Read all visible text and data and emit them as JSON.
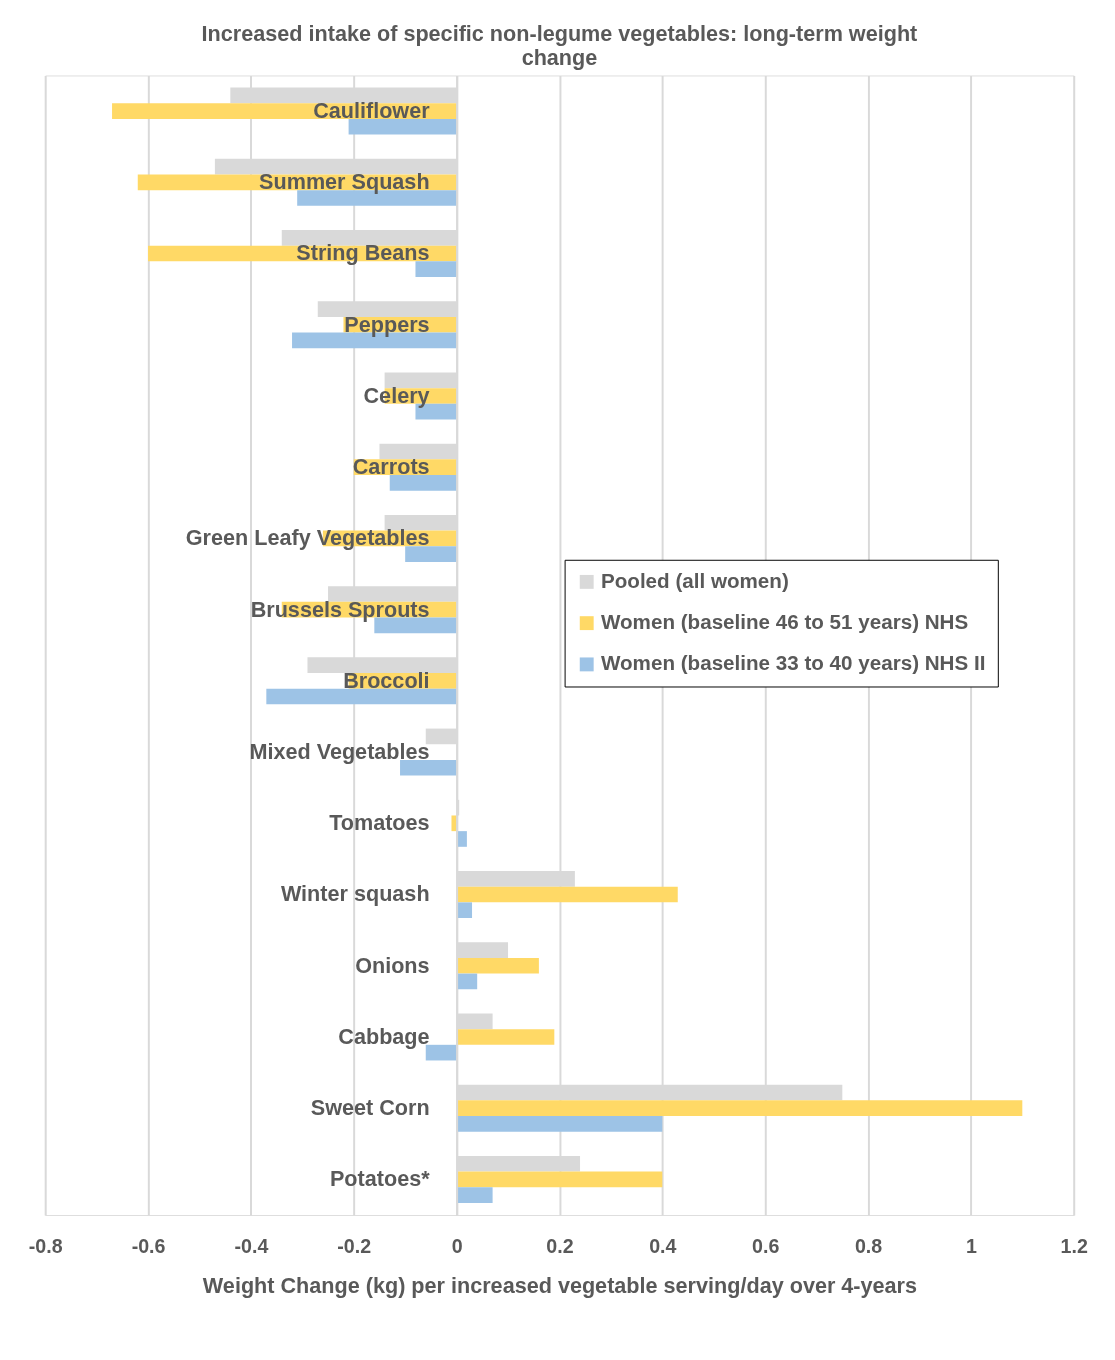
{
  "chart_data": {
    "type": "bar",
    "orientation": "horizontal",
    "title": "Increased intake of specific non-legume vegetables: long-term weight change",
    "xlabel": "Weight Change (kg) per increased vegetable serving/day over 4-years",
    "categories": [
      "Cauliflower",
      "Summer Squash",
      "String Beans",
      "Peppers",
      "Celery",
      "Carrots",
      "Green Leafy Vegetables",
      "Brussels Sprouts",
      "Broccoli",
      "Mixed Vegetables",
      "Tomatoes",
      "Winter squash",
      "Onions",
      "Cabbage",
      "Sweet Corn",
      "Potatoes*"
    ],
    "series": [
      {
        "name": "Pooled (all women)",
        "color": "#d9d9d9",
        "values": [
          -0.44,
          -0.47,
          -0.34,
          -0.27,
          -0.14,
          -0.15,
          -0.14,
          -0.25,
          -0.29,
          -0.06,
          0.005,
          0.23,
          0.1,
          0.07,
          0.75,
          0.24
        ]
      },
      {
        "name": "Women (baseline 46 to 51 years) NHS",
        "color": "#ffd966",
        "values": [
          -0.67,
          -0.62,
          -0.6,
          -0.22,
          -0.14,
          -0.2,
          -0.26,
          -0.34,
          -0.21,
          null,
          -0.01,
          0.43,
          0.16,
          0.19,
          1.1,
          0.4
        ]
      },
      {
        "name": "Women (baseline 33 to 40 years) NHS II",
        "color": "#9dc3e6",
        "values": [
          -0.21,
          -0.31,
          -0.08,
          -0.32,
          -0.08,
          -0.13,
          -0.1,
          -0.16,
          -0.37,
          -0.11,
          0.02,
          0.03,
          0.04,
          -0.06,
          0.4,
          0.07
        ]
      }
    ],
    "xlim": [
      -0.8,
      1.2
    ],
    "xticks": [
      -0.8,
      -0.6,
      -0.4,
      -0.2,
      0,
      0.2,
      0.4,
      0.6,
      0.8,
      1,
      1.2
    ],
    "grid": "x",
    "legend": "right"
  }
}
